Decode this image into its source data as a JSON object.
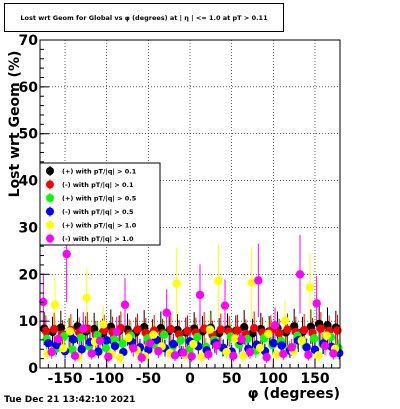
{
  "chart_data": {
    "type": "scatter",
    "title": "Lost wrt Geom for Global vs φ (degrees) at | η | <= 1.0 at pT > 0.11",
    "xlabel": "φ (degrees)",
    "ylabel": "Lost wrt Geom (%)",
    "xlim": [
      -180,
      180
    ],
    "ylim": [
      0,
      70
    ],
    "x_ticks": [
      "-150",
      "-100",
      "-50",
      "0",
      "50",
      "100",
      "150"
    ],
    "y_ticks": [
      "0",
      "10",
      "20",
      "30",
      "40",
      "50",
      "60",
      "70"
    ],
    "grid": true,
    "legend_position": "left-middle",
    "series": [
      {
        "name": "(+) with pT/|q| > 0.1",
        "color": "#000000",
        "x": [
          -175,
          -165,
          -155,
          -145,
          -135,
          -125,
          -115,
          -105,
          -95,
          -85,
          -75,
          -65,
          -55,
          -45,
          -35,
          -25,
          -15,
          -5,
          5,
          15,
          25,
          35,
          45,
          55,
          65,
          75,
          85,
          95,
          105,
          115,
          125,
          135,
          145,
          155,
          165,
          175
        ],
        "y": [
          8.4,
          7.7,
          8.6,
          7.5,
          8.9,
          7.8,
          8.3,
          7.4,
          8.8,
          7.9,
          8.2,
          7.6,
          8.7,
          7.3,
          8.5,
          7.9,
          8.1,
          7.6,
          8.4,
          7.8,
          8.6,
          7.5,
          8.2,
          7.9,
          8.7,
          7.4,
          8.3,
          7.8,
          8.5,
          7.6,
          8.9,
          7.7,
          8.8,
          9.4,
          9.1,
          8.6
        ]
      },
      {
        "name": "(-) with pT/|q| > 0.1",
        "color": "#ff0000",
        "x": [
          -173,
          -163,
          -153,
          -143,
          -133,
          -123,
          -113,
          -103,
          -93,
          -83,
          -73,
          -63,
          -53,
          -43,
          -33,
          -23,
          -13,
          -3,
          7,
          17,
          27,
          37,
          47,
          57,
          67,
          77,
          87,
          97,
          107,
          117,
          127,
          137,
          147,
          157,
          167,
          177
        ],
        "y": [
          7.9,
          8.3,
          7.2,
          8.1,
          7.6,
          8.4,
          7.1,
          8.0,
          7.7,
          8.5,
          7.3,
          8.2,
          7.5,
          8.0,
          7.4,
          8.3,
          7.2,
          7.9,
          7.6,
          8.4,
          7.1,
          8.2,
          7.8,
          8.0,
          7.3,
          8.5,
          7.6,
          7.9,
          7.4,
          8.2,
          7.7,
          8.1,
          7.5,
          8.4,
          7.9,
          8.0
        ]
      },
      {
        "name": "(+) with pT/|q| > 0.5",
        "color": "#00ff00",
        "x": [
          -172,
          -161,
          -151,
          -141,
          -131,
          -121,
          -111,
          -101,
          -91,
          -81,
          -71,
          -61,
          -51,
          -41,
          -31,
          -21,
          -11,
          -1,
          9,
          19,
          29,
          39,
          49,
          59,
          69,
          79,
          89,
          99,
          109,
          119,
          129,
          139,
          149,
          159,
          169,
          178
        ],
        "y": [
          6.2,
          4.1,
          6.8,
          3.9,
          6.5,
          4.6,
          7.0,
          4.3,
          6.1,
          5.2,
          6.9,
          4.0,
          6.3,
          4.8,
          7.1,
          4.4,
          5.9,
          3.8,
          6.6,
          4.5,
          6.0,
          4.2,
          6.7,
          5.0,
          6.2,
          3.7,
          6.4,
          4.9,
          5.8,
          4.1,
          6.9,
          4.6,
          6.3,
          5.1,
          6.6,
          4.3
        ]
      },
      {
        "name": "(-) with pT/|q| > 0.5",
        "color": "#0000ff",
        "x": [
          -170,
          -160,
          -150,
          -140,
          -130,
          -120,
          -110,
          -100,
          -90,
          -80,
          -70,
          -60,
          -50,
          -40,
          -30,
          -20,
          -10,
          0,
          10,
          20,
          30,
          40,
          50,
          60,
          70,
          80,
          90,
          100,
          110,
          120,
          130,
          140,
          150,
          160,
          170,
          179
        ],
        "y": [
          5.3,
          4.9,
          3.6,
          6.1,
          4.0,
          5.5,
          3.5,
          5.9,
          4.7,
          3.4,
          5.6,
          4.4,
          3.9,
          6.0,
          4.2,
          5.1,
          3.3,
          5.7,
          4.6,
          3.8,
          5.4,
          4.3,
          3.5,
          5.8,
          4.1,
          5.0,
          3.6,
          5.3,
          4.8,
          3.7,
          5.9,
          4.4,
          3.9,
          5.2,
          4.5,
          3.2
        ]
      },
      {
        "name": "(+) with pT/|q| > 1.0",
        "color": "#ffff00",
        "x": [
          -171,
          -162,
          -152,
          -144,
          -134,
          -124,
          -114,
          -104,
          -94,
          -84,
          -74,
          -64,
          -54,
          -44,
          -34,
          -24,
          -16,
          -6,
          4,
          14,
          24,
          34,
          44,
          54,
          64,
          74,
          84,
          94,
          104,
          114,
          124,
          134,
          144,
          154,
          164,
          174
        ],
        "y": [
          3.1,
          13.5,
          4.2,
          7.8,
          2.4,
          15.0,
          5.6,
          9.3,
          3.0,
          2.2,
          6.4,
          3.8,
          2.5,
          7.1,
          4.6,
          3.2,
          18.0,
          2.8,
          5.1,
          2.4,
          8.2,
          18.6,
          3.4,
          6.3,
          2.6,
          18.2,
          4.3,
          7.3,
          2.9,
          10.1,
          3.5,
          5.8,
          17.2,
          2.7,
          6.9,
          4.1
        ]
      },
      {
        "name": "(-) with pT/|q| > 1.0",
        "color": "#ff00ff",
        "x": [
          -176,
          -166,
          -158,
          -148,
          -138,
          -128,
          -118,
          -108,
          -98,
          -88,
          -78,
          -68,
          -58,
          -48,
          -38,
          -28,
          -18,
          -8,
          2,
          12,
          22,
          32,
          42,
          52,
          62,
          72,
          82,
          92,
          102,
          112,
          122,
          132,
          142,
          152,
          162,
          172
        ],
        "y": [
          14.1,
          3.4,
          6.2,
          24.3,
          2.6,
          8.4,
          3.1,
          5.8,
          2.4,
          7.7,
          13.5,
          4.2,
          2.2,
          5.3,
          3.6,
          11.8,
          2.7,
          3.3,
          2.5,
          15.6,
          2.9,
          4.8,
          13.3,
          2.6,
          6.1,
          3.4,
          18.7,
          2.3,
          9.1,
          3.0,
          4.4,
          20.0,
          2.8,
          13.8,
          4.7,
          3.1
        ]
      }
    ]
  },
  "footer": {
    "timestamp": "Tue Dec 21 13:42:10 2021"
  }
}
